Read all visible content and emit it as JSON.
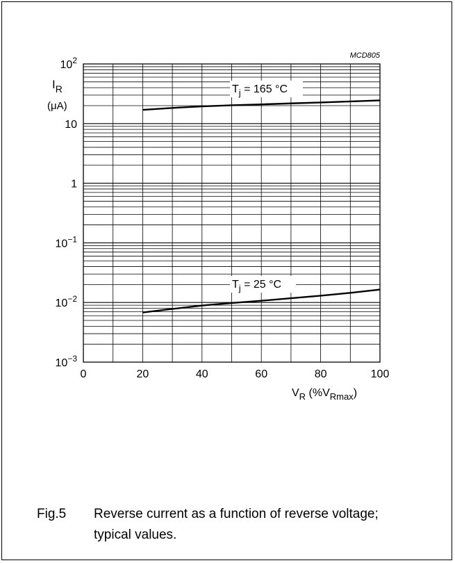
{
  "chart_data": {
    "type": "line",
    "code": "MCD805",
    "ylabel_main": "I",
    "ylabel_sub": "R",
    "ylabel_unit": "(μA)",
    "xlabel_main": "V",
    "xlabel_sub": "R",
    "xlabel_paren_open": " (%V",
    "xlabel_paren_sub": "Rmax",
    "xlabel_paren_close": ")",
    "xscale": "linear",
    "yscale": "log",
    "xlim": [
      0,
      100
    ],
    "ylim": [
      0.001,
      100
    ],
    "xticks": [
      0,
      20,
      40,
      60,
      80,
      100
    ],
    "grid": true,
    "yticks": [
      {
        "base": "10",
        "exp": "2"
      },
      {
        "base": "10",
        "exp": ""
      },
      {
        "base": "1",
        "exp": ""
      },
      {
        "base": "10",
        "exp": "−1"
      },
      {
        "base": "10",
        "exp": "−2"
      },
      {
        "base": "10",
        "exp": "−3"
      }
    ],
    "series": [
      {
        "label_main": "T",
        "label_sub": "j",
        "label_rest": " = 165 °C",
        "x": [
          20,
          30,
          40,
          50,
          60,
          70,
          80,
          90,
          100
        ],
        "y": [
          17,
          18.3,
          19.4,
          20.3,
          21.0,
          21.8,
          22.6,
          23.5,
          24.5
        ]
      },
      {
        "label_main": "T",
        "label_sub": "j",
        "label_rest": " = 25 °C",
        "x": [
          20,
          30,
          40,
          50,
          60,
          70,
          80,
          90,
          100
        ],
        "y": [
          0.0068,
          0.0078,
          0.0089,
          0.0098,
          0.0107,
          0.0118,
          0.013,
          0.0145,
          0.0165
        ]
      }
    ]
  },
  "caption": {
    "fig": "Fig.5",
    "text": "Reverse current as a function of reverse voltage; typical values."
  }
}
